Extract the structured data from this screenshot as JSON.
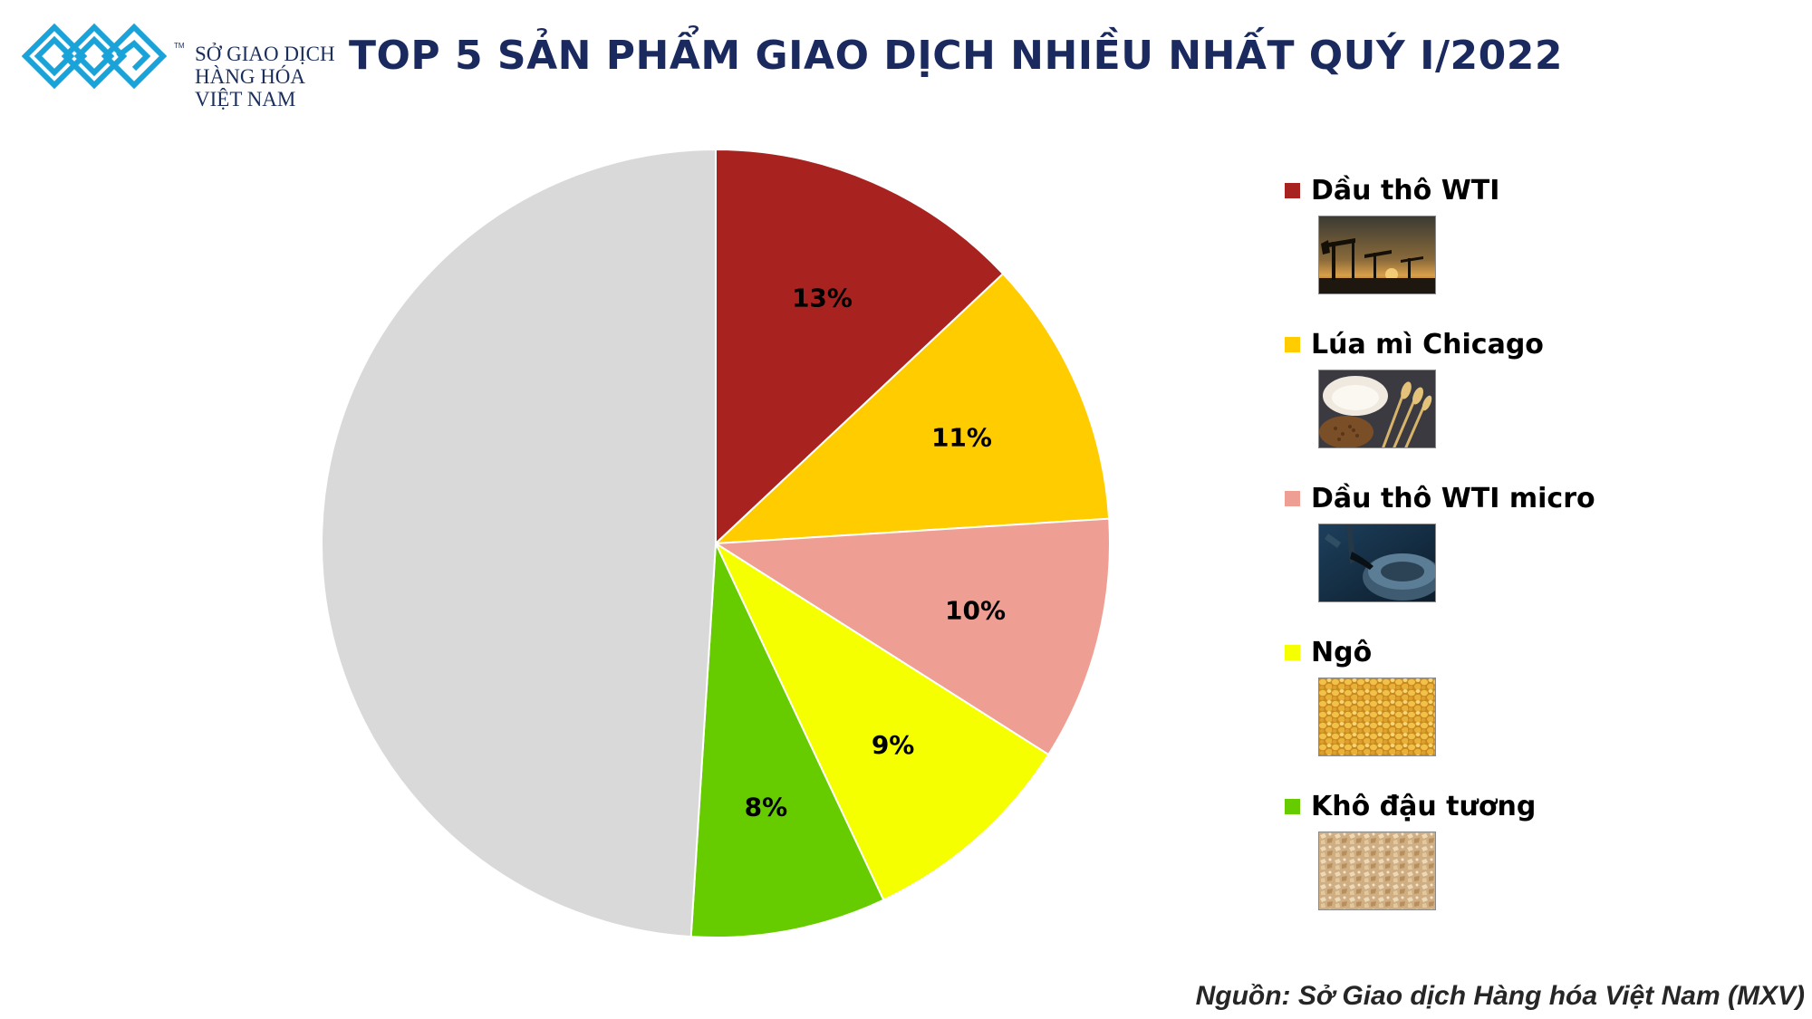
{
  "brand": {
    "name_lines": [
      "SỞ GIAO DỊCH",
      "HÀNG HÓA",
      "VIỆT NAM"
    ],
    "trademark": "TM",
    "color": "#1aa3d9"
  },
  "title": "TOP 5 SẢN PHẨM GIAO DỊCH NHIỀU NHẤT QUÝ I/2022",
  "source": "Nguồn: Sở Giao dịch Hàng hóa Việt Nam (MXV)",
  "chart_data": {
    "type": "pie",
    "title": "TOP 5 SẢN PHẨM GIAO DỊCH NHIỀU NHẤT QUÝ I/2022",
    "start_angle": "12 o'clock, clockwise",
    "slices": [
      {
        "name": "Dầu thô WTI",
        "value": 13,
        "label": "13%",
        "color": "#a8231f",
        "in_legend": true
      },
      {
        "name": "Lúa mì Chicago",
        "value": 11,
        "label": "11%",
        "color": "#ffcc00",
        "in_legend": true
      },
      {
        "name": "Dầu thô WTI micro",
        "value": 10,
        "label": "10%",
        "color": "#ee9e92",
        "in_legend": true
      },
      {
        "name": "Ngô",
        "value": 9,
        "label": "9%",
        "color": "#f5ff00",
        "in_legend": true
      },
      {
        "name": "Khô đậu tương",
        "value": 8,
        "label": "8%",
        "color": "#66cc00",
        "in_legend": true
      },
      {
        "name": "",
        "value": 49,
        "label": "",
        "color": "#d9d9d9",
        "in_legend": false
      }
    ],
    "legend_position": "right",
    "legend": [
      {
        "label": "Dầu thô WTI",
        "color": "#a8231f",
        "image": "oil-pumpjack-sunset-photo"
      },
      {
        "label": "Lúa mì Chicago",
        "color": "#ffcc00",
        "image": "wheat-flour-grain-photo"
      },
      {
        "label": "Dầu thô WTI micro",
        "color": "#ee9e92",
        "image": "oil-barrel-pour-photo"
      },
      {
        "label": "Ngô",
        "color": "#f5ff00",
        "image": "corn-kernels-photo"
      },
      {
        "label": "Khô đậu tương",
        "color": "#66cc00",
        "image": "soybean-meal-photo"
      }
    ]
  }
}
